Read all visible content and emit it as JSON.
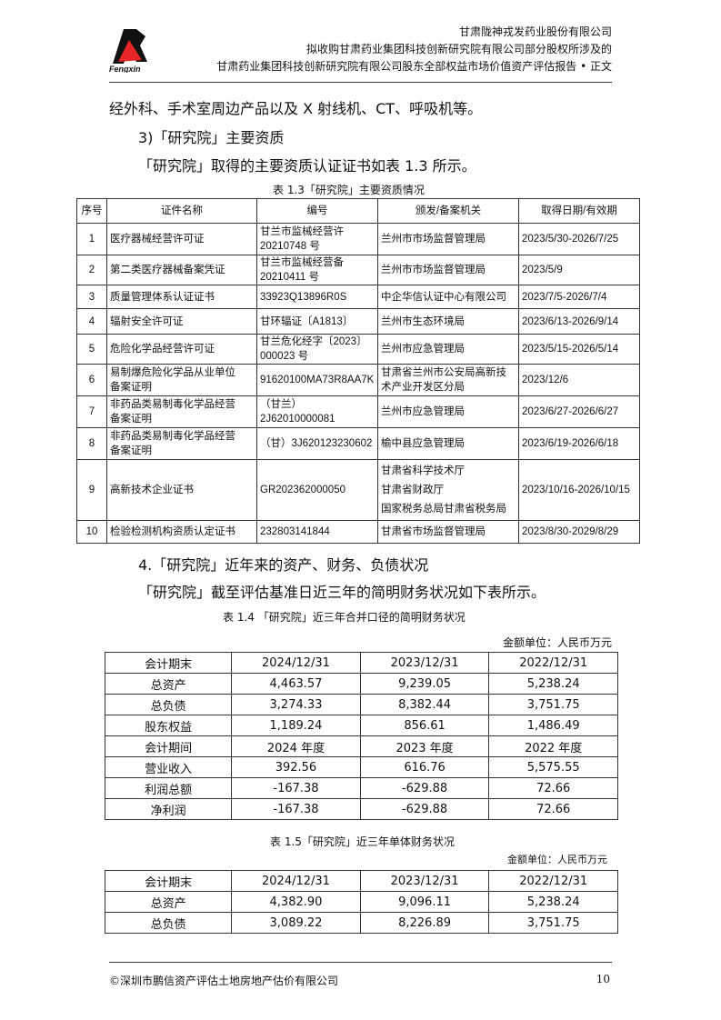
{
  "header": {
    "logo_text": "Fengxin",
    "lines": [
      "甘肃陇神戎发药业股份有限公司",
      "拟收购甘肃药业集团科技创新研究院有限公司部分股权所涉及的",
      "甘肃药业集团科技创新研究院有限公司股东全部权益市场价值资产评估报告 • 正文"
    ]
  },
  "body": {
    "p1": "经外科、手术室周边产品以及 X 射线机、CT、呼吸机等。",
    "p2": "3)「研究院」主要资质",
    "p3": "「研究院」取得的主要资质认证证书如表 1.3 所示。",
    "p4": "4.「研究院」近年来的资产、财务、负债状况",
    "p5": "「研究院」截至评估基准日近三年的简明财务状况如下表所示。"
  },
  "table13": {
    "caption": "表 1.3「研究院」主要资质情况",
    "headers": [
      "序号",
      "证件名称",
      "编号",
      "颁发/备案机关",
      "取得日期/有效期"
    ],
    "rows": [
      [
        "1",
        "医疗器械经营许可证",
        "甘兰市监械经营许\n20210748 号",
        "兰州市市场监督管理局",
        "2023/5/30-2026/7/25"
      ],
      [
        "2",
        "第二类医疗器械备案凭证",
        "甘兰市监械经营备\n20210411 号",
        "兰州市市场监督管理局",
        "2023/5/9"
      ],
      [
        "3",
        "质量管理体系认证证书",
        "33923Q13896R0S",
        "中企华信认证中心有限公司",
        "2023/7/5-2026/7/4"
      ],
      [
        "4",
        "辐射安全许可证",
        "甘环辐证〔A1813〕",
        "兰州市生态环境局",
        "2023/6/13-2026/9/14"
      ],
      [
        "5",
        "危险化学品经营许可证",
        "甘兰危化经字〔2023〕\n000023 号",
        "兰州市应急管理局",
        "2023/5/15-2026/5/14"
      ],
      [
        "6",
        "易制爆危险化学品从业单位\n备案证明",
        "91620100MA73R8AA7K",
        "甘肃省兰州市公安局高新技\n术产业开发区分局",
        "2023/12/6"
      ],
      [
        "7",
        "非药品类易制毒化学品经营\n备案证明",
        "（甘兰）\n2J62010000081",
        "兰州市应急管理局",
        "2023/6/27-2026/6/27"
      ],
      [
        "8",
        "非药品类易制毒化学品经营\n备案证明",
        "（甘）3J620123230602",
        "榆中县应急管理局",
        "2023/6/19-2026/6/18"
      ],
      [
        "9",
        "高新技术企业证书",
        "GR202362000050",
        "甘肃省科学技术厅\n甘肃省财政厅\n国家税务总局甘肃省税务局",
        "2023/10/16-2026/10/15"
      ],
      [
        "10",
        "检验检测机构资质认定证书",
        "232803141844",
        "甘肃省市场监督管理局",
        "2023/8/30-2029/8/29"
      ]
    ]
  },
  "table14": {
    "caption": "表 1.4 「研究院」近三年合并口径的简明财务状况",
    "unit": "金额单位：人民币万元",
    "rows": [
      [
        "会计期末",
        "2024/12/31",
        "2023/12/31",
        "2022/12/31"
      ],
      [
        "总资产",
        "4,463.57",
        "9,239.05",
        "5,238.24"
      ],
      [
        "总负债",
        "3,274.33",
        "8,382.44",
        "3,751.75"
      ],
      [
        "股东权益",
        "1,189.24",
        "856.61",
        "1,486.49"
      ],
      [
        "会计期间",
        "2024 年度",
        "2023 年度",
        "2022 年度"
      ],
      [
        "营业收入",
        "392.56",
        "616.76",
        "5,575.55"
      ],
      [
        "利润总额",
        "-167.38",
        "-629.88",
        "72.66"
      ],
      [
        "净利润",
        "-167.38",
        "-629.88",
        "72.66"
      ]
    ]
  },
  "table15": {
    "caption": "表 1.5「研究院」近三年单体财务状况",
    "unit": "金额单位：人民币万元",
    "rows": [
      [
        "会计期末",
        "2024/12/31",
        "2023/12/31",
        "2022/12/31"
      ],
      [
        "总资产",
        "4,382.90",
        "9,096.11",
        "5,238.24"
      ],
      [
        "总负债",
        "3,089.22",
        "8,226.89",
        "3,751.75"
      ]
    ]
  },
  "footer": {
    "company": "©深圳市鹏信资产评估土地房地产估价有限公司",
    "page": "10"
  },
  "colors": {
    "logo_red": "#e8262a",
    "logo_black": "#111111"
  }
}
